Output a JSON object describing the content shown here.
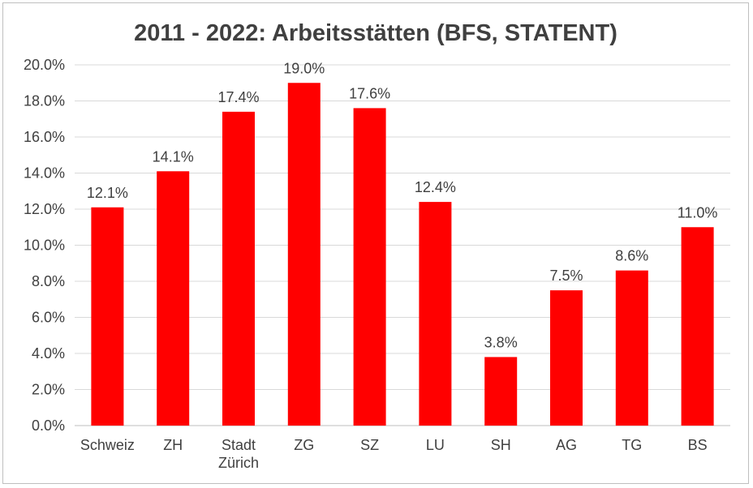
{
  "chart_data": {
    "type": "bar",
    "title": "2011 - 2022: Arbeitsstätten (BFS, STATENT)",
    "xlabel": "",
    "ylabel": "",
    "categories": [
      "Schweiz",
      "ZH",
      "Stadt Zürich",
      "ZG",
      "SZ",
      "LU",
      "SH",
      "AG",
      "TG",
      "BS"
    ],
    "category_lines": [
      [
        "Schweiz"
      ],
      [
        "ZH"
      ],
      [
        "Stadt",
        "Zürich"
      ],
      [
        "ZG"
      ],
      [
        "SZ"
      ],
      [
        "LU"
      ],
      [
        "SH"
      ],
      [
        "AG"
      ],
      [
        "TG"
      ],
      [
        "BS"
      ]
    ],
    "values": [
      12.1,
      14.1,
      17.4,
      19.0,
      17.6,
      12.4,
      3.8,
      7.5,
      8.6,
      11.0
    ],
    "data_labels": [
      "12.1%",
      "14.1%",
      "17.4%",
      "19.0%",
      "17.6%",
      "12.4%",
      "3.8%",
      "7.5%",
      "8.6%",
      "11.0%"
    ],
    "ylim": [
      0,
      20
    ],
    "yticks": [
      0,
      2,
      4,
      6,
      8,
      10,
      12,
      14,
      16,
      18,
      20
    ],
    "ytick_labels": [
      "0.0%",
      "2.0%",
      "4.0%",
      "6.0%",
      "8.0%",
      "10.0%",
      "12.0%",
      "14.0%",
      "16.0%",
      "18.0%",
      "20.0%"
    ],
    "grid": true,
    "legend": "none",
    "colors": {
      "bar": "#ff0000",
      "text": "#404040",
      "grid": "#d9d9d9"
    }
  }
}
